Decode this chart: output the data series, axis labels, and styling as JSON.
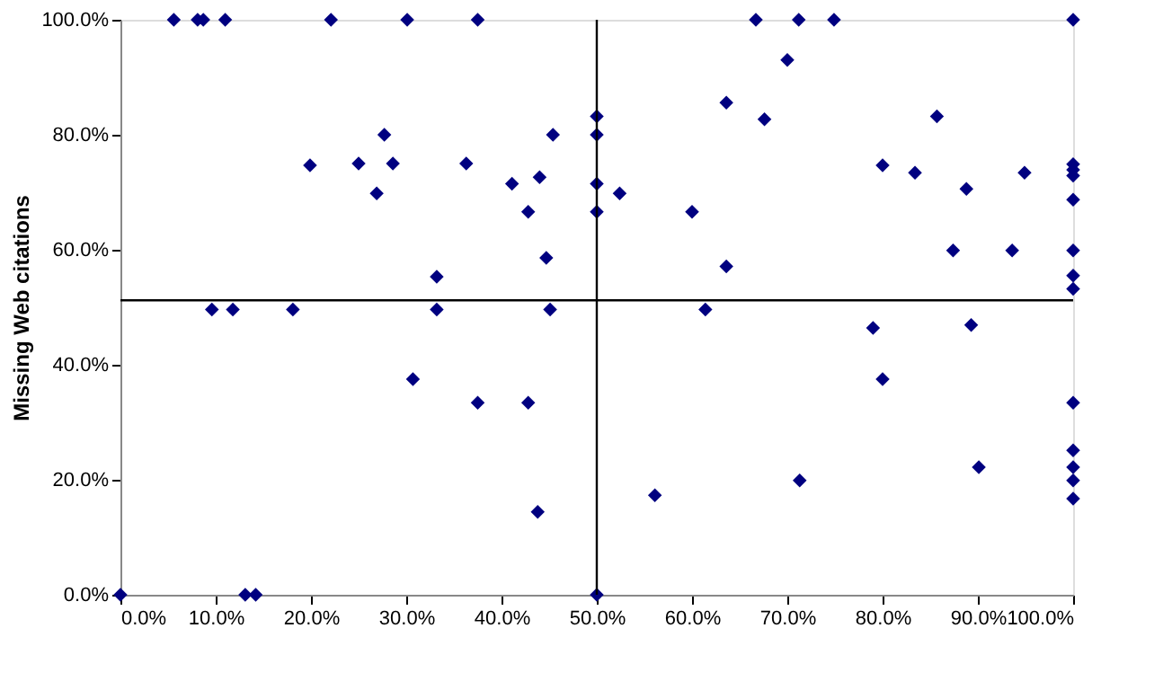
{
  "chart_data": {
    "type": "scatter",
    "ylabel": "Missing Web citations",
    "marker": "diamond",
    "grid": false,
    "series": [
      {
        "color": "#000080",
        "x": [
          5.6,
          8.1,
          8.7,
          11.0,
          22.1,
          30.1,
          37.5,
          66.7,
          71.2,
          74.9,
          100,
          70.0,
          50.0,
          50.0,
          45.4,
          27.7,
          19.9,
          25.0,
          28.6,
          26.9,
          36.3,
          41.1,
          44.0,
          42.8,
          50.0,
          50.0,
          52.4,
          44.7,
          60.0,
          63.6,
          63.6,
          67.6,
          33.2,
          9.6,
          11.8,
          18.1,
          33.2,
          45.1,
          61.4,
          30.7,
          37.5,
          42.8,
          43.8,
          56.1,
          71.3,
          79.0,
          89.3,
          80.0,
          90.1,
          100,
          100,
          100,
          100,
          100,
          0,
          13.1,
          14.2,
          50.0,
          85.7,
          80.0,
          83.4,
          88.8,
          94.9,
          100,
          100,
          100,
          100,
          100,
          100,
          100,
          87.4,
          93.6
        ],
        "values": [
          100,
          100,
          100,
          100,
          100,
          100,
          100,
          100,
          100,
          100,
          100,
          93.0,
          83.2,
          80.0,
          80.0,
          80.0,
          74.7,
          75.0,
          75.0,
          69.8,
          75.0,
          71.5,
          72.6,
          66.6,
          71.5,
          66.6,
          69.8,
          58.6,
          66.6,
          57.1,
          85.6,
          82.7,
          55.3,
          49.6,
          49.6,
          49.6,
          49.6,
          49.6,
          49.6,
          37.5,
          33.4,
          33.4,
          14.4,
          17.3,
          19.9,
          46.4,
          46.9,
          37.5,
          22.2,
          33.4,
          25.1,
          22.2,
          19.9,
          16.7,
          0,
          0,
          0,
          0,
          83.2,
          74.7,
          73.4,
          70.6,
          73.4,
          74.9,
          73.9,
          72.9,
          68.7,
          59.9,
          55.5,
          53.2,
          59.9,
          59.9
        ]
      }
    ],
    "xlim": [
      0,
      100
    ],
    "ylim": [
      0,
      100
    ],
    "xticks": [
      {
        "value": 0,
        "label": "0.0%"
      },
      {
        "value": 10,
        "label": "10.0%"
      },
      {
        "value": 20,
        "label": "20.0%"
      },
      {
        "value": 30,
        "label": "30.0%"
      },
      {
        "value": 40,
        "label": "40.0%"
      },
      {
        "value": 50,
        "label": "50.0%"
      },
      {
        "value": 60,
        "label": "60.0%"
      },
      {
        "value": 70,
        "label": "70.0%"
      },
      {
        "value": 80,
        "label": "80.0%"
      },
      {
        "value": 90,
        "label": "90.0%"
      },
      {
        "value": 100,
        "label": "100.0%"
      }
    ],
    "yticks": [
      {
        "value": 0,
        "label": "0.0%"
      },
      {
        "value": 20,
        "label": "20.0%"
      },
      {
        "value": 40,
        "label": "40.0%"
      },
      {
        "value": 60,
        "label": "60.0%"
      },
      {
        "value": 80,
        "label": "80.0%"
      },
      {
        "value": 100,
        "label": "100.0%"
      }
    ],
    "ref_lines": [
      {
        "axis": "x",
        "value": 50,
        "color": "#000000"
      },
      {
        "axis": "y",
        "value": 51.2,
        "color": "#000000"
      }
    ]
  }
}
